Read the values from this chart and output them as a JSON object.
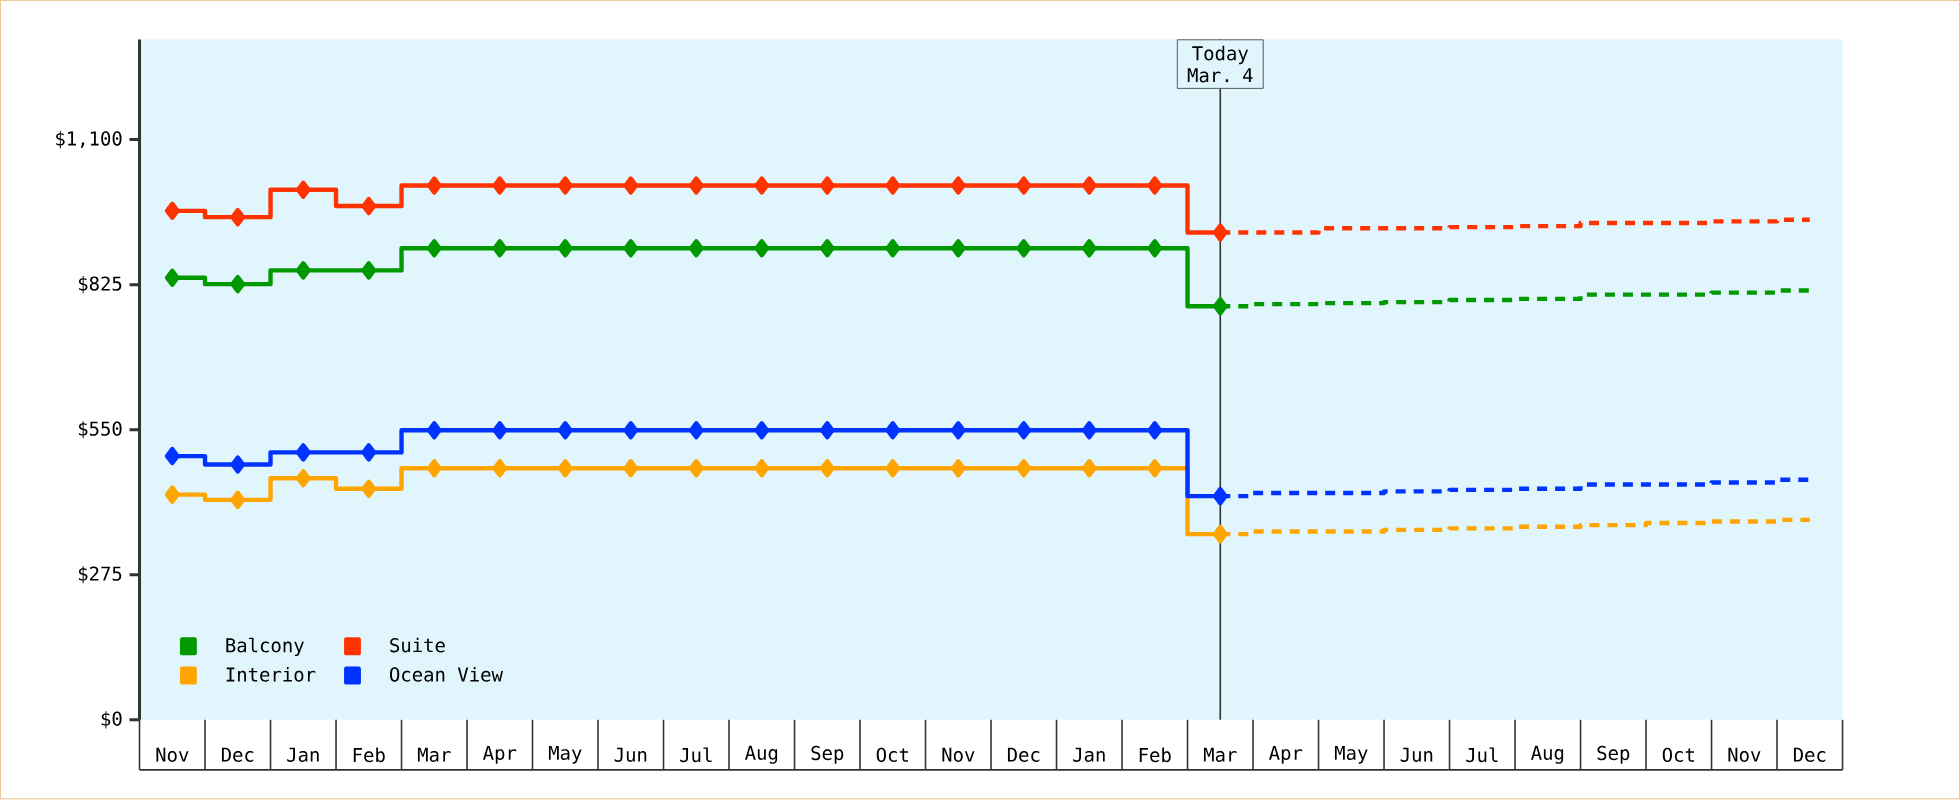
{
  "chart_data": {
    "type": "step",
    "categories": [
      "Nov",
      "Dec",
      "Jan",
      "Feb",
      "Mar",
      "Apr",
      "May",
      "Jun",
      "Jul",
      "Aug",
      "Sep",
      "Oct",
      "Nov",
      "Dec",
      "Jan",
      "Feb",
      "Mar",
      "Apr",
      "May",
      "Jun",
      "Jul",
      "Aug",
      "Sep",
      "Oct",
      "Nov",
      "Dec"
    ],
    "series": [
      {
        "name": "Balcony",
        "color": "#009900",
        "values": [
          838,
          826,
          852,
          852,
          894,
          894,
          894,
          894,
          894,
          894,
          894,
          894,
          894,
          894,
          894,
          894,
          784,
          null,
          null,
          null,
          null,
          null,
          null,
          null,
          null,
          null
        ],
        "marker": "diamond",
        "line_style": "solid"
      },
      {
        "name": "Suite",
        "color": "#ff3300",
        "values": [
          965,
          953,
          1005,
          974,
          1013,
          1013,
          1013,
          1013,
          1013,
          1013,
          1013,
          1013,
          1013,
          1013,
          1013,
          1013,
          924,
          null,
          null,
          null,
          null,
          null,
          null,
          null,
          null,
          null
        ],
        "marker": "diamond",
        "line_style": "solid"
      },
      {
        "name": "Interior",
        "color": "#ffa500",
        "values": [
          427,
          417,
          458,
          438,
          477,
          477,
          477,
          477,
          477,
          477,
          477,
          477,
          477,
          477,
          477,
          477,
          352,
          null,
          null,
          null,
          null,
          null,
          null,
          null,
          null,
          null
        ],
        "marker": "diamond",
        "line_style": "solid"
      },
      {
        "name": "Ocean View",
        "color": "#0033ff",
        "values": [
          500,
          484,
          507,
          507,
          549,
          549,
          549,
          549,
          549,
          549,
          549,
          549,
          549,
          549,
          549,
          549,
          424,
          null,
          null,
          null,
          null,
          null,
          null,
          null,
          null,
          null
        ],
        "marker": "diamond",
        "line_style": "solid"
      },
      {
        "color": "#009900",
        "values": [
          null,
          null,
          null,
          null,
          null,
          null,
          null,
          null,
          null,
          null,
          null,
          null,
          null,
          null,
          null,
          null,
          784,
          788,
          790,
          792,
          796,
          798,
          806,
          806,
          810,
          814
        ],
        "marker": "none",
        "line_style": "dashed"
      },
      {
        "color": "#ff3300",
        "values": [
          null,
          null,
          null,
          null,
          null,
          null,
          null,
          null,
          null,
          null,
          null,
          null,
          null,
          null,
          null,
          null,
          924,
          924,
          932,
          932,
          934,
          936,
          942,
          942,
          945,
          948
        ],
        "marker": "none",
        "line_style": "dashed"
      },
      {
        "color": "#ffa500",
        "values": [
          null,
          null,
          null,
          null,
          null,
          null,
          null,
          null,
          null,
          null,
          null,
          null,
          null,
          null,
          null,
          null,
          352,
          357,
          357,
          360,
          363,
          366,
          369,
          373,
          376,
          379
        ],
        "marker": "none",
        "line_style": "dashed"
      },
      {
        "color": "#0033ff",
        "values": [
          null,
          null,
          null,
          null,
          null,
          null,
          null,
          null,
          null,
          null,
          null,
          null,
          null,
          null,
          null,
          null,
          424,
          430,
          430,
          433,
          436,
          438,
          446,
          446,
          450,
          455
        ],
        "marker": "none",
        "line_style": "dashed"
      }
    ],
    "ylim": [
      0,
      1290
    ],
    "yticks": [
      {
        "value": 0,
        "label": "$0"
      },
      {
        "value": 275,
        "label": "$275"
      },
      {
        "value": 550,
        "label": "$550"
      },
      {
        "value": 825,
        "label": "$825"
      },
      {
        "value": 1100,
        "label": "$1,100"
      }
    ],
    "annotations": [
      "Today Mar. 4"
    ],
    "legend": "bottom left"
  }
}
